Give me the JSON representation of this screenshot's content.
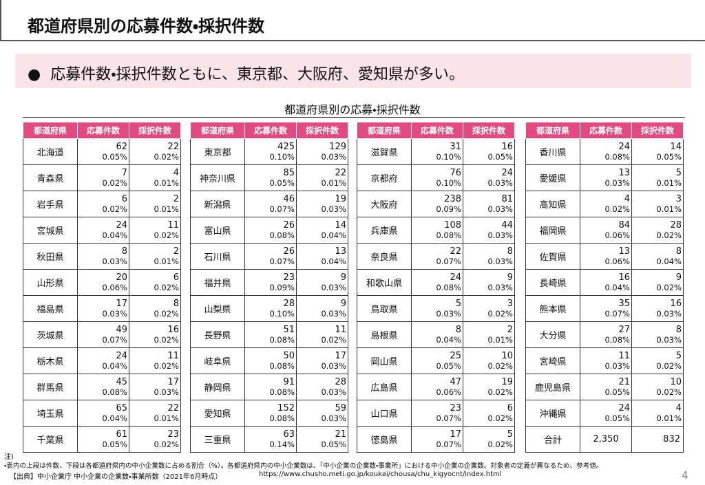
{
  "header": {
    "title": "都道府県別の応募件数・採択件数"
  },
  "bullet": {
    "text": "応募件数・採択件数ともに、東京都、大阪府、愛知県が多い。"
  },
  "table_title": "都道府県別の応募・採択件数",
  "tables": [
    {
      "columns": [
        "都道府県",
        "応募件数",
        "採択件数"
      ],
      "rows": [
        [
          "北海道",
          "62",
          "0.05%",
          "22",
          "0.02%"
        ],
        [
          "青森県",
          "7",
          "0.02%",
          "4",
          "0.01%"
        ],
        [
          "岩手県",
          "6",
          "0.02%",
          "2",
          "0.01%"
        ],
        [
          "宮城県",
          "24",
          "0.04%",
          "11",
          "0.02%"
        ],
        [
          "秋田県",
          "8",
          "0.03%",
          "2",
          "0.01%"
        ],
        [
          "山形県",
          "20",
          "0.06%",
          "6",
          "0.02%"
        ],
        [
          "福島県",
          "17",
          "0.03%",
          "8",
          "0.02%"
        ],
        [
          "茨城県",
          "49",
          "0.07%",
          "16",
          "0.02%"
        ],
        [
          "栃木県",
          "24",
          "0.04%",
          "11",
          "0.02%"
        ],
        [
          "群馬県",
          "45",
          "0.08%",
          "17",
          "0.03%"
        ],
        [
          "埼玉県",
          "65",
          "0.04%",
          "22",
          "0.01%"
        ],
        [
          "千葉県",
          "61",
          "0.05%",
          "23",
          "0.02%"
        ]
      ]
    },
    {
      "columns": [
        "都道府県",
        "応募件数",
        "採択件数"
      ],
      "rows": [
        [
          "東京都",
          "425",
          "0.10%",
          "129",
          "0.03%"
        ],
        [
          "神奈川県",
          "85",
          "0.05%",
          "22",
          "0.01%"
        ],
        [
          "新潟県",
          "46",
          "0.07%",
          "19",
          "0.03%"
        ],
        [
          "富山県",
          "26",
          "0.08%",
          "14",
          "0.04%"
        ],
        [
          "石川県",
          "26",
          "0.07%",
          "13",
          "0.04%"
        ],
        [
          "福井県",
          "23",
          "0.09%",
          "9",
          "0.03%"
        ],
        [
          "山梨県",
          "28",
          "0.10%",
          "9",
          "0.03%"
        ],
        [
          "長野県",
          "51",
          "0.08%",
          "11",
          "0.02%"
        ],
        [
          "岐阜県",
          "50",
          "0.08%",
          "17",
          "0.03%"
        ],
        [
          "静岡県",
          "91",
          "0.08%",
          "28",
          "0.03%"
        ],
        [
          "愛知県",
          "152",
          "0.08%",
          "59",
          "0.03%"
        ],
        [
          "三重県",
          "63",
          "0.14%",
          "21",
          "0.05%"
        ]
      ]
    },
    {
      "columns": [
        "都道府県",
        "応募件数",
        "採択件数"
      ],
      "rows": [
        [
          "滋賀県",
          "31",
          "0.10%",
          "16",
          "0.05%"
        ],
        [
          "京都府",
          "76",
          "0.10%",
          "24",
          "0.03%"
        ],
        [
          "大阪府",
          "238",
          "0.09%",
          "81",
          "0.03%"
        ],
        [
          "兵庫県",
          "108",
          "0.08%",
          "44",
          "0.03%"
        ],
        [
          "奈良県",
          "22",
          "0.07%",
          "8",
          "0.03%"
        ],
        [
          "和歌山県",
          "24",
          "0.08%",
          "9",
          "0.03%"
        ],
        [
          "鳥取県",
          "5",
          "0.03%",
          "3",
          "0.02%"
        ],
        [
          "島根県",
          "8",
          "0.04%",
          "2",
          "0.01%"
        ],
        [
          "岡山県",
          "25",
          "0.05%",
          "10",
          "0.02%"
        ],
        [
          "広島県",
          "47",
          "0.06%",
          "19",
          "0.02%"
        ],
        [
          "山口県",
          "23",
          "0.07%",
          "6",
          "0.02%"
        ],
        [
          "徳島県",
          "17",
          "0.07%",
          "5",
          "0.02%"
        ]
      ]
    },
    {
      "columns": [
        "都道府県",
        "応募件数",
        "採択件数"
      ],
      "rows": [
        [
          "香川県",
          "24",
          "0.08%",
          "14",
          "0.05%"
        ],
        [
          "愛媛県",
          "13",
          "0.03%",
          "5",
          "0.01%"
        ],
        [
          "高知県",
          "4",
          "0.02%",
          "3",
          "0.01%"
        ],
        [
          "福岡県",
          "84",
          "0.06%",
          "28",
          "0.02%"
        ],
        [
          "佐賀県",
          "13",
          "0.06%",
          "8",
          "0.04%"
        ],
        [
          "長崎県",
          "16",
          "0.04%",
          "9",
          "0.02%"
        ],
        [
          "熊本県",
          "35",
          "0.07%",
          "16",
          "0.03%"
        ],
        [
          "大分県",
          "27",
          "0.08%",
          "8",
          "0.03%"
        ],
        [
          "宮崎県",
          "11",
          "0.03%",
          "5",
          "0.02%"
        ],
        [
          "鹿児島県",
          "21",
          "0.05%",
          "10",
          "0.02%"
        ],
        [
          "沖縄県",
          "24",
          "0.05%",
          "4",
          "0.01%"
        ]
      ],
      "total": {
        "label": "合計",
        "applications": "2,350",
        "adoptions": "832"
      }
    }
  ],
  "footer": {
    "note_label": "注)",
    "note": "・表内の上段は件数、下段は各都道府県内の中小企業数に占める割合（%）。各都道府県内の中小企業数は、「中小企業の企業数・事業所」における中小企業の企業数。対象者の定義が異なるため、参考値。",
    "source": "【出典】中小企業庁 中小企業の企業数・事業所数（2021年6月時点）",
    "url": "https://www.chusho.meti.go.jp/koukai/chousa/chu_kigyocnt/index.html",
    "page": "4"
  }
}
